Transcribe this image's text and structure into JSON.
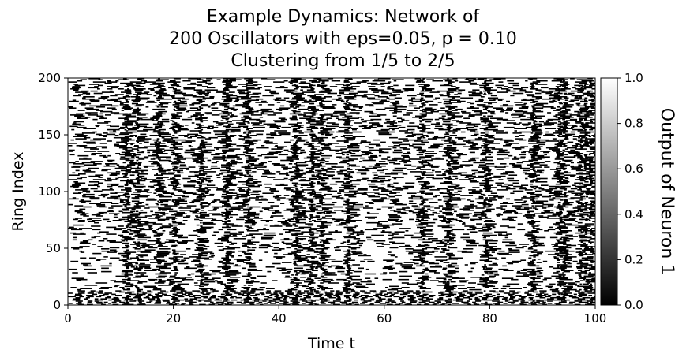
{
  "chart_data": {
    "type": "heatmap",
    "title_lines": [
      "Example Dynamics: Network of",
      "200 Oscillators with eps=0.05, p = 0.10",
      "Clustering from 1/5 to 2/5"
    ],
    "xlabel": "Time t",
    "ylabel": "Ring Index",
    "xlim": [
      0,
      100
    ],
    "ylim": [
      0,
      200
    ],
    "xticks": [
      0,
      20,
      40,
      60,
      80,
      100
    ],
    "yticks": [
      0,
      50,
      100,
      150,
      200
    ],
    "colorbar": {
      "label": "Output of Neuron 1",
      "range": [
        0.0,
        1.0
      ],
      "ticks": [
        "0.0",
        "0.2",
        "0.4",
        "0.6",
        "0.8",
        "1.0"
      ],
      "colormap": "gray"
    },
    "vertical_burst_times": [
      11,
      13,
      17,
      20,
      25,
      30,
      34,
      43,
      46,
      48,
      53,
      67,
      72,
      79,
      88,
      93,
      94,
      97,
      98,
      99
    ],
    "dense_band_ring_index": [
      0,
      13
    ],
    "sparse_band_ring_index": [
      13,
      75
    ]
  }
}
